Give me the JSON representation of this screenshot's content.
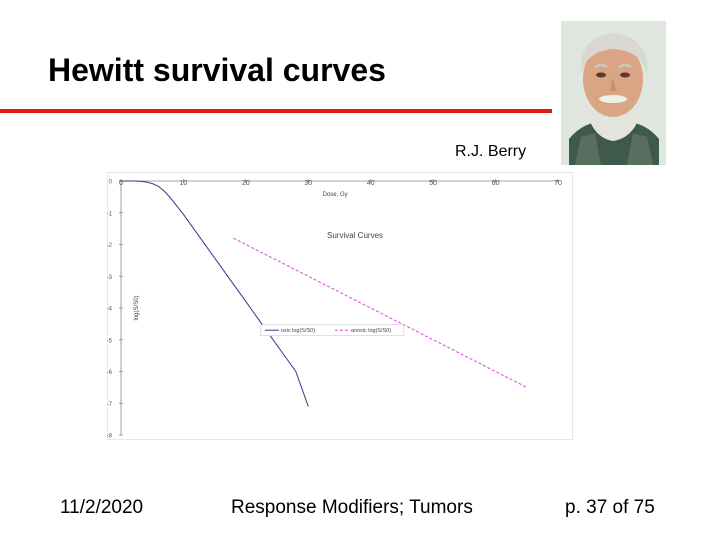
{
  "slide": {
    "title": "Hewitt survival curves",
    "caption": "R.J. Berry",
    "footer_date": "11/2/2020",
    "footer_center": "Response Modifiers; Tumors",
    "footer_page": "p. 37 of 75",
    "accent_color": "#e31b1b"
  },
  "chart_data": {
    "type": "line",
    "title": "Survival Curves",
    "xlabel": "Dose, Gy",
    "ylabel": "log(S/S0)",
    "xlim": [
      0,
      70
    ],
    "ylim": [
      -8,
      0
    ],
    "x_ticks": [
      "0",
      "10",
      "20",
      "30",
      "40",
      "50",
      "60",
      "70"
    ],
    "y_ticks": [
      "0",
      "-1",
      "-2",
      "-3",
      "-4",
      "-5",
      "-6",
      "-7",
      "-8"
    ],
    "legend_position": "center",
    "series": [
      {
        "name": "oxic log(S/S0)",
        "color": "#2c3e8c",
        "x": [
          0,
          1,
          2,
          3,
          4,
          5,
          6,
          7,
          8,
          10,
          12,
          14,
          16,
          18,
          20,
          22,
          24,
          26,
          28,
          30
        ],
        "y": [
          0,
          0,
          0,
          -0.01,
          -0.03,
          -0.08,
          -0.17,
          -0.33,
          -0.55,
          -1.05,
          -1.6,
          -2.15,
          -2.7,
          -3.25,
          -3.8,
          -4.35,
          -4.9,
          -5.45,
          -6.0,
          -7.1
        ]
      },
      {
        "name": "anoxic log(S/S0)",
        "color": "#e040e0",
        "x": [
          18,
          65
        ],
        "y": [
          -1.8,
          -6.5
        ]
      }
    ]
  }
}
